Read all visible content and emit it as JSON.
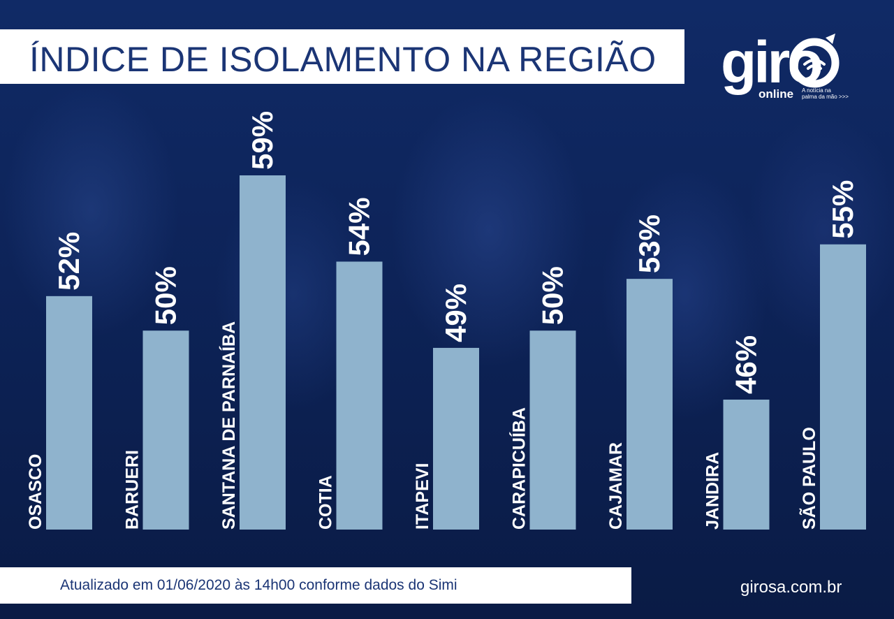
{
  "title": "ÍNDICE DE ISOLAMENTO NA REGIÃO",
  "footer": "Atualizado em 01/06/2020 às 14h00 conforme dados do Simi",
  "site": "girosa.com.br",
  "logo": {
    "word": "giro",
    "sub": "online",
    "tagline_1": "A notícia na",
    "tagline_2": "palma da mão >>>"
  },
  "colors": {
    "bar": "#8fb3cd",
    "title_text": "#1b3575",
    "background": "#0b1d4a"
  },
  "chart_data": {
    "type": "bar",
    "title": "ÍNDICE DE ISOLAMENTO NA REGIÃO",
    "categories": [
      "OSASCO",
      "BARUERI",
      "SANTANA DE PARNAÍBA",
      "COTIA",
      "ITAPEVI",
      "CARAPICUÍBA",
      "CAJAMAR",
      "JANDIRA",
      "SÃO PAULO"
    ],
    "values": [
      52,
      50,
      59,
      54,
      49,
      50,
      53,
      46,
      55
    ],
    "labels": [
      "52%",
      "50%",
      "59%",
      "54%",
      "49%",
      "50%",
      "53%",
      "46%",
      "55%"
    ],
    "unit": "%",
    "grid": false,
    "legend": "none"
  }
}
